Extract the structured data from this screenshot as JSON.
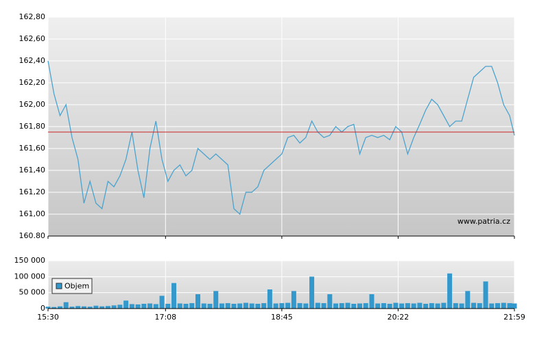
{
  "chart_data": [
    {
      "type": "line",
      "color": "#4aa3cf",
      "x": [
        930,
        935,
        940,
        945,
        950,
        955,
        960,
        965,
        970,
        975,
        980,
        985,
        990,
        995,
        1000,
        1005,
        1010,
        1015,
        1020,
        1025,
        1030,
        1035,
        1040,
        1045,
        1050,
        1055,
        1060,
        1065,
        1070,
        1075,
        1080,
        1085,
        1090,
        1095,
        1100,
        1105,
        1110,
        1115,
        1120,
        1125,
        1130,
        1135,
        1140,
        1145,
        1150,
        1155,
        1160,
        1165,
        1170,
        1175,
        1180,
        1185,
        1190,
        1195,
        1200,
        1205,
        1210,
        1215,
        1220,
        1225,
        1230,
        1235,
        1240,
        1245,
        1250,
        1255,
        1260,
        1265,
        1270,
        1275,
        1280,
        1285,
        1290,
        1295,
        1300,
        1305,
        1310,
        1315,
        1319
      ],
      "values": [
        162.4,
        162.1,
        161.9,
        162.0,
        161.7,
        161.5,
        161.1,
        161.3,
        161.1,
        161.05,
        161.3,
        161.25,
        161.35,
        161.5,
        161.75,
        161.4,
        161.15,
        161.6,
        161.85,
        161.5,
        161.3,
        161.4,
        161.45,
        161.35,
        161.4,
        161.6,
        161.55,
        161.5,
        161.55,
        161.5,
        161.45,
        161.05,
        161.0,
        161.2,
        161.2,
        161.25,
        161.4,
        161.45,
        161.5,
        161.55,
        161.7,
        161.72,
        161.65,
        161.7,
        161.85,
        161.75,
        161.7,
        161.72,
        161.8,
        161.75,
        161.8,
        161.82,
        161.55,
        161.7,
        161.72,
        161.7,
        161.72,
        161.68,
        161.8,
        161.75,
        161.55,
        161.7,
        161.82,
        161.95,
        162.05,
        162.0,
        161.9,
        161.8,
        161.85,
        161.85,
        162.05,
        162.25,
        162.3,
        162.35,
        162.35,
        162.2,
        162.0,
        161.9,
        161.72
      ],
      "reference_line": 161.75,
      "reference_color": "#cc2222",
      "xlim": [
        930,
        1319
      ],
      "ylim": [
        160.8,
        162.8
      ],
      "yticks": [
        {
          "value": 160.8,
          "label": "160.80"
        },
        {
          "value": 161.0,
          "label": "161,00"
        },
        {
          "value": 161.2,
          "label": "161,20"
        },
        {
          "value": 161.4,
          "label": "161,40"
        },
        {
          "value": 161.6,
          "label": "161,60"
        },
        {
          "value": 161.8,
          "label": "161,80"
        },
        {
          "value": 162.0,
          "label": "162,00"
        },
        {
          "value": 162.2,
          "label": "162,20"
        },
        {
          "value": 162.4,
          "label": "162,40"
        },
        {
          "value": 162.6,
          "label": "162,60"
        },
        {
          "value": 162.8,
          "label": "162,80"
        }
      ],
      "annotation": "www.patria.cz",
      "grid": true
    },
    {
      "type": "bar",
      "x": [
        930,
        935,
        940,
        945,
        950,
        955,
        960,
        965,
        970,
        975,
        980,
        985,
        990,
        995,
        1000,
        1005,
        1010,
        1015,
        1020,
        1025,
        1030,
        1035,
        1040,
        1045,
        1050,
        1055,
        1060,
        1065,
        1070,
        1075,
        1080,
        1085,
        1090,
        1095,
        1100,
        1105,
        1110,
        1115,
        1120,
        1125,
        1130,
        1135,
        1140,
        1145,
        1150,
        1155,
        1160,
        1165,
        1170,
        1175,
        1180,
        1185,
        1190,
        1195,
        1200,
        1205,
        1210,
        1215,
        1220,
        1225,
        1230,
        1235,
        1240,
        1245,
        1250,
        1255,
        1260,
        1265,
        1270,
        1275,
        1280,
        1285,
        1290,
        1295,
        1300,
        1305,
        1310,
        1315,
        1319
      ],
      "series": [
        {
          "name": "Objem",
          "color": "#3399cc",
          "values": [
            6000,
            5000,
            7000,
            20000,
            6000,
            8000,
            7000,
            6000,
            9000,
            7000,
            8000,
            10000,
            12000,
            25000,
            14000,
            13000,
            15000,
            16000,
            14000,
            40000,
            15000,
            80000,
            16000,
            15000,
            17000,
            45000,
            16000,
            15000,
            55000,
            16000,
            17000,
            15000,
            16000,
            18000,
            16000,
            15000,
            17000,
            60000,
            16000,
            17000,
            18000,
            55000,
            17000,
            16000,
            100000,
            18000,
            17000,
            45000,
            16000,
            17000,
            18000,
            15000,
            16000,
            17000,
            45000,
            16000,
            17000,
            15000,
            18000,
            16000,
            17000,
            16000,
            18000,
            15000,
            17000,
            16000,
            18000,
            110000,
            17000,
            16000,
            55000,
            18000,
            17000,
            85000,
            16000,
            17000,
            18000,
            17000,
            16000
          ]
        }
      ],
      "xlim": [
        930,
        1319
      ],
      "ylim": [
        0,
        150000
      ],
      "xticks": [
        {
          "value": 930,
          "label": "15:30"
        },
        {
          "value": 1028,
          "label": "17:08"
        },
        {
          "value": 1125,
          "label": "18:45"
        },
        {
          "value": 1222,
          "label": "20:22"
        },
        {
          "value": 1319,
          "label": "21:59"
        }
      ],
      "yticks": [
        0,
        {
          "value": 50000,
          "label": "50 000"
        },
        {
          "value": 100000,
          "label": "100 000"
        },
        {
          "value": 150000,
          "label": "150 000"
        }
      ],
      "legend": "left",
      "grid": true
    }
  ]
}
